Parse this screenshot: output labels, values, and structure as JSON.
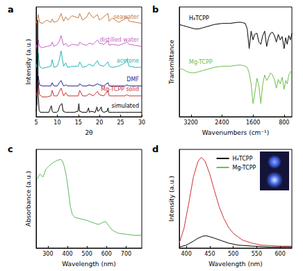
{
  "chart_data": [
    {
      "type": "line",
      "title": "a",
      "xlabel": "2θ",
      "ylabel": "Intensity (a.u.)",
      "xlim": [
        5,
        30
      ],
      "xticks": [
        5,
        10,
        15,
        20,
        25,
        30
      ],
      "ylim": [
        0,
        100
      ],
      "tick_labels": "x",
      "grid": false,
      "series": [
        {
          "name": "seawater",
          "color": "#c8783c",
          "x": [
            5,
            5.3,
            5.5,
            5.8,
            6.5,
            7.5,
            8.5,
            8.8,
            9.2,
            10,
            10.5,
            10.9,
            11.5,
            12,
            12.5,
            13.5,
            15,
            15.3,
            16,
            17,
            17.5,
            18.5,
            19.5,
            20,
            21,
            22,
            22.3,
            23,
            24.5,
            26,
            26.5,
            27,
            28.5,
            30
          ],
          "values": [
            85,
            89,
            93,
            86,
            85,
            88,
            86,
            89,
            86,
            87,
            90,
            94,
            87,
            91,
            88,
            92,
            90,
            94,
            88,
            91,
            95,
            90,
            93,
            88,
            91,
            94,
            87,
            90,
            86,
            89,
            91,
            87,
            86,
            85
          ]
        },
        {
          "name": "distilled water",
          "color": "#c864c8",
          "x": [
            5,
            5.3,
            5.5,
            5.8,
            6.5,
            7.5,
            8.5,
            8.8,
            9.2,
            10,
            10.5,
            10.9,
            11.5,
            12,
            12.5,
            13.5,
            15,
            15.3,
            16,
            17,
            17.5,
            18.5,
            19.5,
            20,
            21,
            22,
            22.3,
            23,
            24.5,
            26,
            26.5,
            27,
            28.5,
            30
          ],
          "values": [
            63,
            67,
            70,
            64,
            63,
            64,
            65,
            68,
            64,
            66,
            69,
            74,
            65,
            67,
            64,
            66,
            65,
            68,
            66,
            65,
            67,
            66,
            70,
            67,
            66,
            69,
            65,
            66,
            65,
            67,
            68,
            66,
            65,
            64
          ]
        },
        {
          "name": "acetone",
          "color": "#28b4b4",
          "x": [
            5,
            5.3,
            5.5,
            5.8,
            6.5,
            7.5,
            8.5,
            8.8,
            9.2,
            10,
            10.5,
            10.9,
            11.5,
            12,
            12.5,
            13.5,
            15,
            15.3,
            16,
            17,
            17.5,
            18.5,
            19.5,
            20,
            21,
            22,
            22.3,
            23,
            24.5,
            26,
            26.5,
            27,
            28.5,
            30
          ],
          "values": [
            45,
            50,
            58,
            46,
            44,
            45,
            46,
            52,
            45,
            46,
            52,
            60,
            46,
            49,
            45,
            46,
            46,
            50,
            45,
            46,
            48,
            46,
            51,
            47,
            46,
            50,
            46,
            45,
            46,
            49,
            52,
            46,
            45,
            45
          ]
        },
        {
          "name": "DMF",
          "color": "#1e1e96",
          "x": [
            5,
            5.3,
            5.5,
            5.8,
            6.5,
            7.5,
            8.5,
            8.8,
            9.2,
            10,
            10.5,
            10.9,
            11.5,
            12,
            12.5,
            13.5,
            15,
            15.3,
            16,
            17,
            17.5,
            18.5,
            19.5,
            20,
            21,
            22,
            22.3,
            23,
            24.5,
            26,
            26.5,
            27,
            28.5,
            30
          ],
          "values": [
            29,
            31,
            37,
            29,
            28,
            28,
            28,
            31,
            28,
            28,
            31,
            33,
            28,
            29,
            28,
            28,
            28,
            30,
            28,
            28,
            29,
            28,
            30,
            29,
            28,
            31,
            28,
            28,
            28,
            28,
            29,
            28,
            28,
            28
          ]
        },
        {
          "name": "Mg-TCPP solid",
          "color": "#c83232",
          "x": [
            5,
            5.3,
            5.5,
            5.8,
            6.5,
            7.5,
            8.5,
            8.8,
            9.2,
            10,
            10.5,
            10.9,
            11.5,
            12,
            12.5,
            13.5,
            15,
            15.3,
            16,
            17,
            17.5,
            18.5,
            19.5,
            20,
            21,
            22,
            22.3,
            23,
            24.5,
            26,
            26.5,
            27,
            28.5,
            30
          ],
          "values": [
            19,
            24,
            31,
            20,
            18,
            18,
            19,
            24,
            19,
            19,
            23,
            26,
            19,
            22,
            19,
            19,
            19,
            24,
            19,
            19,
            21,
            19,
            23,
            20,
            19,
            24,
            19,
            19,
            19,
            19,
            20,
            19,
            19,
            19
          ]
        },
        {
          "name": "simulated",
          "color": "#000000",
          "x": [
            5,
            5.2,
            5.35,
            5.5,
            5.7,
            6,
            7,
            8,
            8.6,
            8.8,
            9,
            9.8,
            10.2,
            10.5,
            10.8,
            11.1,
            11.4,
            12,
            13,
            14,
            14.9,
            15.1,
            15.3,
            16,
            17,
            17.4,
            17.6,
            18,
            19,
            19.4,
            19.6,
            20,
            20.4,
            20.6,
            21,
            21.8,
            22,
            22.2,
            23,
            24,
            25,
            26,
            27,
            28,
            29,
            30
          ],
          "values": [
            5,
            12,
            88,
            20,
            6,
            4,
            4,
            4,
            10,
            5,
            4,
            4,
            5,
            9,
            11,
            12,
            5,
            4,
            4,
            4,
            5,
            12,
            5,
            4,
            4,
            8,
            4,
            5,
            4,
            9,
            5,
            6,
            9,
            5,
            4,
            5,
            8,
            4,
            4,
            4,
            4,
            4,
            4,
            4,
            4,
            4
          ]
        }
      ]
    },
    {
      "type": "line",
      "title": "b",
      "xlabel": "Wavenumbers (cm⁻¹)",
      "ylabel": "Transmittance",
      "xlim": [
        3500,
        600
      ],
      "xticks": [
        3200,
        2400,
        1600,
        800
      ],
      "ylim": [
        0,
        100
      ],
      "tick_labels": "x",
      "grid": false,
      "series": [
        {
          "name": "H₄TCPP",
          "color": "#000000",
          "x": [
            3500,
            3400,
            3300,
            3200,
            3100,
            3000,
            2900,
            2800,
            2600,
            2400,
            2200,
            2000,
            1900,
            1800,
            1750,
            1700,
            1650,
            1600,
            1560,
            1500,
            1450,
            1400,
            1350,
            1300,
            1250,
            1200,
            1150,
            1100,
            1050,
            1000,
            950,
            900,
            850,
            800,
            760,
            720,
            680,
            640,
            600
          ],
          "values": [
            84,
            83,
            82,
            81,
            80,
            80,
            81,
            82,
            84,
            85,
            85,
            86,
            86,
            85,
            80,
            62,
            78,
            70,
            75,
            76,
            68,
            66,
            74,
            78,
            64,
            72,
            76,
            77,
            74,
            68,
            75,
            70,
            73,
            62,
            72,
            66,
            74,
            70,
            76
          ]
        },
        {
          "name": "Mg-TCPP",
          "color": "#6cc04a",
          "x": [
            3500,
            3400,
            3300,
            3200,
            3100,
            3000,
            2900,
            2800,
            2600,
            2400,
            2200,
            2000,
            1900,
            1800,
            1750,
            1700,
            1650,
            1600,
            1560,
            1500,
            1450,
            1400,
            1350,
            1300,
            1250,
            1200,
            1150,
            1100,
            1050,
            1000,
            950,
            900,
            850,
            800,
            760,
            720,
            680,
            640,
            600
          ],
          "values": [
            44,
            43,
            41,
            40,
            40,
            41,
            42,
            43,
            45,
            46,
            46,
            47,
            47,
            46,
            45,
            40,
            30,
            12,
            20,
            35,
            28,
            12,
            30,
            38,
            33,
            36,
            40,
            38,
            34,
            26,
            34,
            30,
            36,
            25,
            33,
            30,
            38,
            40,
            43
          ]
        }
      ]
    },
    {
      "type": "line",
      "title": "c",
      "xlabel": "Wavelength (nm)",
      "ylabel": "Absorbance (a.u.)",
      "xlim": [
        240,
        780
      ],
      "xticks": [
        300,
        400,
        500,
        600,
        700
      ],
      "ylim": [
        0,
        100
      ],
      "tick_labels": "x",
      "grid": false,
      "series": [
        {
          "color": "#5cb85c",
          "x": [
            245,
            260,
            275,
            290,
            310,
            330,
            350,
            365,
            375,
            385,
            395,
            405,
            415,
            425,
            440,
            460,
            500,
            540,
            560,
            580,
            595,
            610,
            630,
            660,
            700,
            740,
            780
          ],
          "values": [
            70,
            75,
            72,
            80,
            84,
            87,
            89,
            90,
            88,
            82,
            72,
            58,
            42,
            34,
            31,
            30,
            28,
            25,
            24,
            26,
            27,
            23,
            18,
            15,
            14,
            13,
            13
          ]
        }
      ]
    },
    {
      "type": "line",
      "title": "d",
      "xlabel": "Wavelength (nm)",
      "ylabel": "Intensity (a.u.)",
      "xlim": [
        385,
        625
      ],
      "xticks": [
        400,
        450,
        500,
        550,
        600
      ],
      "ylim": [
        0,
        100
      ],
      "tick_labels": "x",
      "grid": false,
      "legend": "top",
      "series": [
        {
          "name": "H₄TCPP",
          "color": "#000000",
          "x": [
            385,
            400,
            415,
            425,
            435,
            442,
            450,
            460,
            475,
            490,
            510,
            540,
            580,
            625
          ],
          "values": [
            1,
            3,
            7,
            10,
            12,
            12.5,
            11.5,
            10,
            7.5,
            5,
            3,
            2,
            1,
            1
          ]
        },
        {
          "name": "Mg-TCPP",
          "color": "#d03030",
          "x": [
            385,
            395,
            405,
            415,
            425,
            432,
            440,
            450,
            460,
            470,
            480,
            490,
            500,
            520,
            540,
            560,
            600,
            625
          ],
          "values": [
            5,
            20,
            45,
            72,
            88,
            92,
            88,
            75,
            58,
            42,
            30,
            21,
            15,
            8,
            5,
            3,
            2,
            2
          ]
        }
      ]
    }
  ]
}
